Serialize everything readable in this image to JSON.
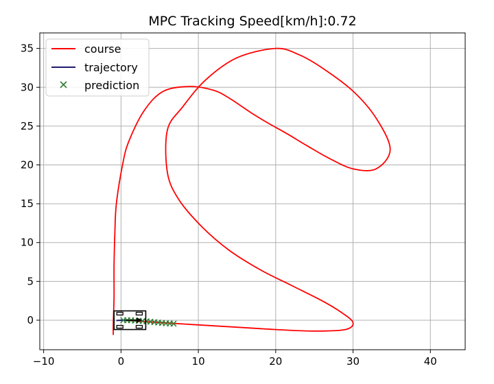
{
  "chart_data": {
    "type": "line",
    "title": "MPC Tracking Speed[km/h]:0.72",
    "xlabel": "",
    "ylabel": "",
    "xlim": [
      -10.5,
      44.5
    ],
    "ylim": [
      -3.8,
      37
    ],
    "xticks": [
      -10,
      0,
      10,
      20,
      30,
      40
    ],
    "yticks": [
      0,
      5,
      10,
      15,
      20,
      25,
      30,
      35
    ],
    "xtick_labels": [
      "−10",
      "0",
      "10",
      "20",
      "30",
      "40"
    ],
    "ytick_labels": [
      "0",
      "5",
      "10",
      "15",
      "20",
      "25",
      "30",
      "35"
    ],
    "grid": true,
    "legend_position": "top-left",
    "colors": {
      "course": "#ff0000",
      "trajectory": "#1a1a6e",
      "prediction": "#2e7d32",
      "grid": "#b0b0b0",
      "vehicle": "#000000"
    },
    "series": [
      {
        "name": "course",
        "style": "line",
        "x": [
          -1.0,
          -1.0,
          -0.9,
          -0.9,
          -0.8,
          -0.6,
          0.2,
          1.0,
          3.0,
          5.5,
          9.0,
          12.0,
          14.0,
          17.0,
          19.0,
          21.5,
          24.0,
          27.0,
          30.0,
          33.0,
          34.8,
          33.0,
          30.0,
          26.0,
          23.0,
          20.0,
          15.0,
          11.0,
          8.0,
          6.0,
          6.0,
          7.5,
          10.5,
          14.0,
          18.0,
          22.0,
          26.0,
          28.5,
          30.0,
          29.0,
          25.0,
          20.0,
          15.0,
          10.0,
          5.0,
          2.0,
          0.5
        ],
        "y": [
          -1.9,
          -0.5,
          3.0,
          7.0,
          11.0,
          15.0,
          20.0,
          23.0,
          27.0,
          29.5,
          30.1,
          29.6,
          28.6,
          26.6,
          25.4,
          24.0,
          22.5,
          20.8,
          19.5,
          19.5,
          22.0,
          26.0,
          29.5,
          32.5,
          34.2,
          35.0,
          33.8,
          31.0,
          27.5,
          24.5,
          19.0,
          15.5,
          12.0,
          9.0,
          6.5,
          4.5,
          2.5,
          1.0,
          -0.3,
          -1.2,
          -1.4,
          -1.2,
          -0.9,
          -0.6,
          -0.3,
          -0.1,
          0.0
        ]
      },
      {
        "name": "trajectory",
        "style": "line",
        "x": [
          -0.6,
          0.0,
          0.7
        ],
        "y": [
          -0.05,
          0.0,
          0.0
        ]
      },
      {
        "name": "prediction",
        "style": "marker-x",
        "x": [
          0.3,
          0.8,
          1.3,
          1.8,
          2.3,
          2.8,
          3.3,
          3.8,
          4.3,
          4.8,
          5.3,
          5.8,
          6.3,
          6.8
        ],
        "y": [
          0.0,
          0.0,
          0.0,
          -0.05,
          -0.08,
          -0.1,
          -0.15,
          -0.2,
          -0.25,
          -0.3,
          -0.35,
          -0.4,
          -0.42,
          -0.45
        ]
      }
    ],
    "vehicle": {
      "x": 1.2,
      "y": 0.0,
      "heading_deg": 0
    }
  }
}
